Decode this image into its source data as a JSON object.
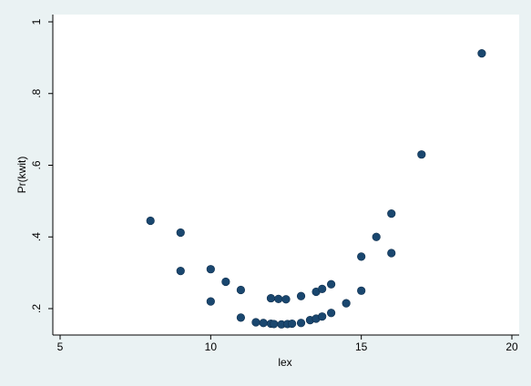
{
  "chart_data": {
    "type": "scatter",
    "title": "",
    "xlabel": "lex",
    "ylabel": "Pr(kwit)",
    "xlim": [
      5,
      20
    ],
    "ylim": [
      0.15,
      1.0
    ],
    "xticks": [
      5,
      10,
      15,
      20
    ],
    "xtick_labels": [
      "5",
      "10",
      "15",
      "20"
    ],
    "yticks": [
      0.2,
      0.4,
      0.6,
      0.8,
      1.0
    ],
    "ytick_labels": [
      ".2",
      ".4",
      ".6",
      ".8",
      "1"
    ],
    "grid": false,
    "legend": "none",
    "colors": {
      "marker": "#1a476f",
      "plot_background": "#ffffff",
      "figure_background": "#eaf2f3"
    },
    "points": [
      {
        "x": 8,
        "y": 0.445
      },
      {
        "x": 9,
        "y": 0.412
      },
      {
        "x": 9,
        "y": 0.305
      },
      {
        "x": 10,
        "y": 0.31
      },
      {
        "x": 10,
        "y": 0.22
      },
      {
        "x": 10.5,
        "y": 0.275
      },
      {
        "x": 11,
        "y": 0.252
      },
      {
        "x": 11,
        "y": 0.175
      },
      {
        "x": 11.5,
        "y": 0.162
      },
      {
        "x": 11.75,
        "y": 0.16
      },
      {
        "x": 12,
        "y": 0.229
      },
      {
        "x": 12,
        "y": 0.158
      },
      {
        "x": 12.1,
        "y": 0.157
      },
      {
        "x": 12.25,
        "y": 0.227
      },
      {
        "x": 12.35,
        "y": 0.156
      },
      {
        "x": 12.5,
        "y": 0.226
      },
      {
        "x": 12.55,
        "y": 0.157
      },
      {
        "x": 12.7,
        "y": 0.158
      },
      {
        "x": 13,
        "y": 0.235
      },
      {
        "x": 13,
        "y": 0.16
      },
      {
        "x": 13.3,
        "y": 0.168
      },
      {
        "x": 13.5,
        "y": 0.247
      },
      {
        "x": 13.5,
        "y": 0.172
      },
      {
        "x": 13.7,
        "y": 0.255
      },
      {
        "x": 13.7,
        "y": 0.178
      },
      {
        "x": 14,
        "y": 0.268
      },
      {
        "x": 14,
        "y": 0.188
      },
      {
        "x": 14.5,
        "y": 0.215
      },
      {
        "x": 15,
        "y": 0.345
      },
      {
        "x": 15,
        "y": 0.25
      },
      {
        "x": 15.5,
        "y": 0.4
      },
      {
        "x": 16,
        "y": 0.465
      },
      {
        "x": 16,
        "y": 0.355
      },
      {
        "x": 17,
        "y": 0.63
      },
      {
        "x": 19,
        "y": 0.912
      }
    ]
  }
}
